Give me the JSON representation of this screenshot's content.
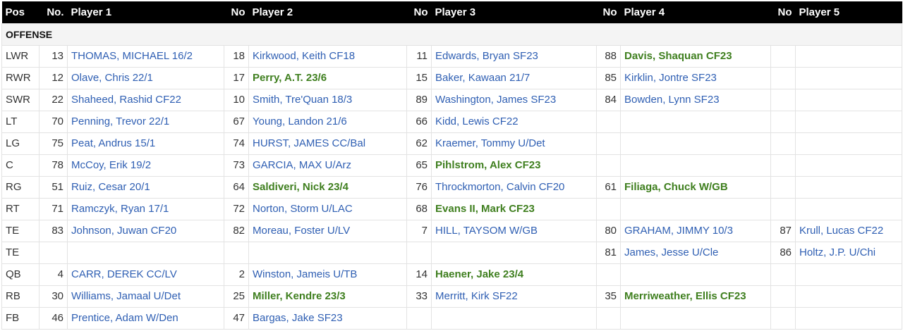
{
  "headers": {
    "pos": "Pos",
    "no": "No.",
    "p1": "Player 1",
    "no2": "No",
    "p2": "Player 2",
    "no3": "No",
    "p3": "Player 3",
    "no4": "No",
    "p4": "Player 4",
    "no5": "No",
    "p5": "Player 5"
  },
  "section_label": "OFFENSE",
  "colors": {
    "link": "#2f5fb3",
    "highlight": "#3f7f1f",
    "header_bg": "#000000"
  },
  "rows": [
    {
      "pos": "LWR",
      "players": [
        {
          "no": "13",
          "name": "THOMAS, MICHAEL 16/2",
          "highlight": false
        },
        {
          "no": "18",
          "name": "Kirkwood, Keith CF18",
          "highlight": false
        },
        {
          "no": "11",
          "name": "Edwards, Bryan SF23",
          "highlight": false
        },
        {
          "no": "88",
          "name": "Davis, Shaquan CF23",
          "highlight": true
        },
        {
          "no": "",
          "name": "",
          "highlight": false
        }
      ]
    },
    {
      "pos": "RWR",
      "players": [
        {
          "no": "12",
          "name": "Olave, Chris 22/1",
          "highlight": false
        },
        {
          "no": "17",
          "name": "Perry, A.T. 23/6",
          "highlight": true
        },
        {
          "no": "15",
          "name": "Baker, Kawaan 21/7",
          "highlight": false
        },
        {
          "no": "85",
          "name": "Kirklin, Jontre SF23",
          "highlight": false
        },
        {
          "no": "",
          "name": "",
          "highlight": false
        }
      ]
    },
    {
      "pos": "SWR",
      "players": [
        {
          "no": "22",
          "name": "Shaheed, Rashid CF22",
          "highlight": false
        },
        {
          "no": "10",
          "name": "Smith, Tre'Quan 18/3",
          "highlight": false
        },
        {
          "no": "89",
          "name": "Washington, James SF23",
          "highlight": false
        },
        {
          "no": "84",
          "name": "Bowden, Lynn SF23",
          "highlight": false
        },
        {
          "no": "",
          "name": "",
          "highlight": false
        }
      ]
    },
    {
      "pos": "LT",
      "players": [
        {
          "no": "70",
          "name": "Penning, Trevor 22/1",
          "highlight": false
        },
        {
          "no": "67",
          "name": "Young, Landon 21/6",
          "highlight": false
        },
        {
          "no": "66",
          "name": "Kidd, Lewis CF22",
          "highlight": false
        },
        {
          "no": "",
          "name": "",
          "highlight": false
        },
        {
          "no": "",
          "name": "",
          "highlight": false
        }
      ]
    },
    {
      "pos": "LG",
      "players": [
        {
          "no": "75",
          "name": "Peat, Andrus 15/1",
          "highlight": false
        },
        {
          "no": "74",
          "name": "HURST, JAMES CC/Bal",
          "highlight": false
        },
        {
          "no": "62",
          "name": "Kraemer, Tommy U/Det",
          "highlight": false
        },
        {
          "no": "",
          "name": "",
          "highlight": false
        },
        {
          "no": "",
          "name": "",
          "highlight": false
        }
      ]
    },
    {
      "pos": "C",
      "players": [
        {
          "no": "78",
          "name": "McCoy, Erik 19/2",
          "highlight": false
        },
        {
          "no": "73",
          "name": "GARCIA, MAX U/Arz",
          "highlight": false
        },
        {
          "no": "65",
          "name": "Pihlstrom, Alex CF23",
          "highlight": true
        },
        {
          "no": "",
          "name": "",
          "highlight": false
        },
        {
          "no": "",
          "name": "",
          "highlight": false
        }
      ]
    },
    {
      "pos": "RG",
      "players": [
        {
          "no": "51",
          "name": "Ruiz, Cesar 20/1",
          "highlight": false
        },
        {
          "no": "64",
          "name": "Saldiveri, Nick 23/4",
          "highlight": true
        },
        {
          "no": "76",
          "name": "Throckmorton, Calvin CF20",
          "highlight": false
        },
        {
          "no": "61",
          "name": "Filiaga, Chuck W/GB",
          "highlight": true
        },
        {
          "no": "",
          "name": "",
          "highlight": false
        }
      ]
    },
    {
      "pos": "RT",
      "players": [
        {
          "no": "71",
          "name": "Ramczyk, Ryan 17/1",
          "highlight": false
        },
        {
          "no": "72",
          "name": "Norton, Storm U/LAC",
          "highlight": false
        },
        {
          "no": "68",
          "name": "Evans II, Mark CF23",
          "highlight": true
        },
        {
          "no": "",
          "name": "",
          "highlight": false
        },
        {
          "no": "",
          "name": "",
          "highlight": false
        }
      ]
    },
    {
      "pos": "TE",
      "players": [
        {
          "no": "83",
          "name": "Johnson, Juwan CF20",
          "highlight": false
        },
        {
          "no": "82",
          "name": "Moreau, Foster U/LV",
          "highlight": false
        },
        {
          "no": "7",
          "name": "HILL, TAYSOM W/GB",
          "highlight": false
        },
        {
          "no": "80",
          "name": "GRAHAM, JIMMY 10/3",
          "highlight": false
        },
        {
          "no": "87",
          "name": "Krull, Lucas CF22",
          "highlight": false
        }
      ]
    },
    {
      "pos": "TE",
      "players": [
        {
          "no": "",
          "name": "",
          "highlight": false
        },
        {
          "no": "",
          "name": "",
          "highlight": false
        },
        {
          "no": "",
          "name": "",
          "highlight": false
        },
        {
          "no": "81",
          "name": "James, Jesse U/Cle",
          "highlight": false
        },
        {
          "no": "86",
          "name": "Holtz, J.P. U/Chi",
          "highlight": false
        }
      ]
    },
    {
      "pos": "QB",
      "players": [
        {
          "no": "4",
          "name": "CARR, DEREK CC/LV",
          "highlight": false
        },
        {
          "no": "2",
          "name": "Winston, Jameis U/TB",
          "highlight": false
        },
        {
          "no": "14",
          "name": "Haener, Jake 23/4",
          "highlight": true
        },
        {
          "no": "",
          "name": "",
          "highlight": false
        },
        {
          "no": "",
          "name": "",
          "highlight": false
        }
      ]
    },
    {
      "pos": "RB",
      "players": [
        {
          "no": "30",
          "name": "Williams, Jamaal U/Det",
          "highlight": false
        },
        {
          "no": "25",
          "name": "Miller, Kendre 23/3",
          "highlight": true
        },
        {
          "no": "33",
          "name": "Merritt, Kirk SF22",
          "highlight": false
        },
        {
          "no": "35",
          "name": "Merriweather, Ellis CF23",
          "highlight": true
        },
        {
          "no": "",
          "name": "",
          "highlight": false
        }
      ]
    },
    {
      "pos": "FB",
      "players": [
        {
          "no": "46",
          "name": "Prentice, Adam W/Den",
          "highlight": false
        },
        {
          "no": "47",
          "name": "Bargas, Jake SF23",
          "highlight": false
        },
        {
          "no": "",
          "name": "",
          "highlight": false
        },
        {
          "no": "",
          "name": "",
          "highlight": false
        },
        {
          "no": "",
          "name": "",
          "highlight": false
        }
      ]
    }
  ]
}
